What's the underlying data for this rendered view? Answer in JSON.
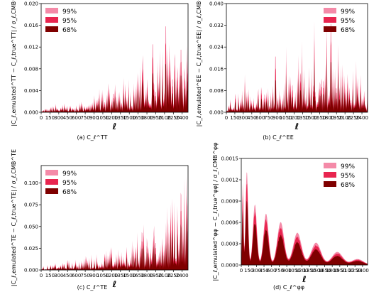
{
  "legend_labels": [
    "99%",
    "95%",
    "68%"
  ],
  "colors": {
    "c99": "#f48aa8",
    "c95": "#e8254f",
    "c68": "#7f0000"
  },
  "chart_data": [
    {
      "id": "TT",
      "type": "area",
      "caption": "(a) C_ℓ^TT",
      "xlabel": "ℓ",
      "ylabel": "|C_ℓ,emulated^TT − C_ℓ,true^TT| / σ_ℓ,CMB^TT",
      "xlim": [
        0,
        2500
      ],
      "ylim": [
        0,
        0.02
      ],
      "xticks": [
        "0",
        "150",
        "300",
        "450",
        "600",
        "750",
        "900",
        "1050",
        "1200",
        "1350",
        "1500",
        "1650",
        "1800",
        "1950",
        "2100",
        "2250",
        "2400"
      ],
      "yticks": [
        "0.000",
        "0.004",
        "0.008",
        "0.012",
        "0.016",
        "0.020"
      ],
      "legend_position": "top-left",
      "envelope": [
        [
          0,
          0.0003
        ],
        [
          150,
          0.0012
        ],
        [
          300,
          0.0018
        ],
        [
          450,
          0.0018
        ],
        [
          600,
          0.002
        ],
        [
          750,
          0.0024
        ],
        [
          900,
          0.0028
        ],
        [
          1000,
          0.0045
        ],
        [
          1200,
          0.005
        ],
        [
          1400,
          0.006
        ],
        [
          1600,
          0.007
        ],
        [
          1800,
          0.009
        ],
        [
          2000,
          0.0095
        ],
        [
          2100,
          0.012
        ],
        [
          2200,
          0.0105
        ],
        [
          2400,
          0.0095
        ],
        [
          2500,
          0.0085
        ]
      ],
      "peaks": [
        [
          1730,
          0.0105
        ],
        [
          1900,
          0.0125
        ],
        [
          2020,
          0.0115
        ],
        [
          2120,
          0.0158
        ],
        [
          2180,
          0.0125
        ],
        [
          2280,
          0.0108
        ],
        [
          2380,
          0.0115
        ],
        [
          2480,
          0.0122
        ]
      ]
    },
    {
      "id": "EE",
      "type": "area",
      "caption": "(b) C_ℓ^EE",
      "xlabel": "ℓ",
      "ylabel": "|C_ℓ,emulated^EE − C_ℓ,true^EE| / σ_ℓ,CMB^EE",
      "xlim": [
        0,
        2500
      ],
      "ylim": [
        0,
        0.04
      ],
      "xticks": [
        "0",
        "150",
        "300",
        "450",
        "600",
        "750",
        "900",
        "1050",
        "1200",
        "1350",
        "1500",
        "1650",
        "1800",
        "1950",
        "2100",
        "2250",
        "2400"
      ],
      "yticks": [
        "0.000",
        "0.008",
        "0.016",
        "0.024",
        "0.032",
        "0.040"
      ],
      "legend_position": "top-right",
      "envelope": [
        [
          0,
          0.004
        ],
        [
          150,
          0.007
        ],
        [
          300,
          0.008
        ],
        [
          450,
          0.008
        ],
        [
          600,
          0.009
        ],
        [
          750,
          0.009
        ],
        [
          900,
          0.011
        ],
        [
          1050,
          0.012
        ],
        [
          1200,
          0.013
        ],
        [
          1350,
          0.015
        ],
        [
          1500,
          0.016
        ],
        [
          1650,
          0.017
        ],
        [
          1800,
          0.019
        ],
        [
          1950,
          0.018
        ],
        [
          2100,
          0.017
        ],
        [
          2250,
          0.016
        ],
        [
          2400,
          0.014
        ],
        [
          2500,
          0.012
        ]
      ],
      "peaks": [
        [
          330,
          0.014
        ],
        [
          870,
          0.0205
        ],
        [
          1060,
          0.024
        ],
        [
          1280,
          0.021
        ],
        [
          1340,
          0.0262
        ],
        [
          1560,
          0.0335
        ],
        [
          1780,
          0.0342
        ],
        [
          1850,
          0.0325
        ],
        [
          1980,
          0.025
        ],
        [
          2300,
          0.019
        ]
      ]
    },
    {
      "id": "TE",
      "type": "area",
      "caption": "(c) C_ℓ^TE",
      "xlabel": "ℓ",
      "ylabel": "|C_ℓ,emulated^TE − C_ℓ,true^TE| / σ_ℓ,CMB^TE",
      "xlim": [
        0,
        2500
      ],
      "ylim": [
        0,
        0.12
      ],
      "xticks": [
        "0",
        "150",
        "300",
        "450",
        "600",
        "750",
        "900",
        "1050",
        "1200",
        "1350",
        "1500",
        "1650",
        "1800",
        "1950",
        "2100",
        "2250",
        "2400"
      ],
      "yticks": [
        "0.000",
        "0.025",
        "0.050",
        "0.075",
        "0.100"
      ],
      "legend_position": "top-left",
      "envelope": [
        [
          0,
          0.004
        ],
        [
          150,
          0.006
        ],
        [
          300,
          0.009
        ],
        [
          450,
          0.011
        ],
        [
          600,
          0.012
        ],
        [
          750,
          0.015
        ],
        [
          900,
          0.018
        ],
        [
          1050,
          0.021
        ],
        [
          1200,
          0.025
        ],
        [
          1350,
          0.029
        ],
        [
          1500,
          0.035
        ],
        [
          1650,
          0.043
        ],
        [
          1800,
          0.052
        ],
        [
          1950,
          0.06
        ],
        [
          2100,
          0.068
        ],
        [
          2250,
          0.078
        ],
        [
          2400,
          0.09
        ],
        [
          2500,
          0.1
        ]
      ],
      "peaks": [
        [
          2430,
          0.105
        ],
        [
          2475,
          0.108
        ]
      ]
    },
    {
      "id": "phiphi",
      "type": "area",
      "caption": "(d) C_ℓ^φφ",
      "xlabel": "ℓ",
      "ylabel": "|C_ℓ,emulated^φφ − C_ℓ,true^φφ| / σ_ℓ,CMB^φφ",
      "xlim": [
        0,
        2500
      ],
      "ylim": [
        0,
        0.0015
      ],
      "xticks": [
        "0",
        "150",
        "300",
        "450",
        "600",
        "750",
        "900",
        "1050",
        "1200",
        "1350",
        "1500",
        "1650",
        "1800",
        "1950",
        "2100",
        "2250",
        "2400"
      ],
      "yticks": [
        "0.0000",
        "0.0003",
        "0.0006",
        "0.0009",
        "0.0012",
        "0.0015"
      ],
      "legend_position": "top-right",
      "bumps": [
        [
          30,
          0.00115,
          18
        ],
        [
          110,
          0.00132,
          35
        ],
        [
          270,
          0.00085,
          55
        ],
        [
          490,
          0.00072,
          70
        ],
        [
          780,
          0.0006,
          95
        ],
        [
          1110,
          0.00045,
          115
        ],
        [
          1480,
          0.00031,
          135
        ],
        [
          1900,
          0.00018,
          150
        ],
        [
          2300,
          8e-05,
          160
        ]
      ],
      "series_scale": {
        "99": 1.0,
        "95": 0.9,
        "68": 0.72
      }
    }
  ]
}
